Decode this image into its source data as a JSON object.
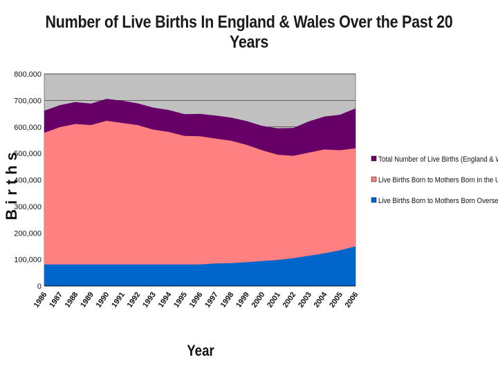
{
  "chart_data": {
    "type": "area",
    "title": "Number of Live Births In England & Wales Over the Past 20 Years",
    "xlabel": "Year",
    "ylabel": "Births",
    "ylim": [
      0,
      800000
    ],
    "yticks": [
      "0",
      "100,000",
      "200,000",
      "300,000",
      "400,000",
      "500,000",
      "600,000",
      "700,000",
      "800,000"
    ],
    "categories": [
      "1986",
      "1987",
      "1988",
      "1989",
      "1990",
      "1991",
      "1992",
      "1993",
      "1994",
      "1995",
      "1996",
      "1997",
      "1998",
      "1999",
      "2000",
      "2001",
      "2002",
      "2003",
      "2004",
      "2005",
      "2006"
    ],
    "stacked": false,
    "grid": true,
    "legend_position": "right",
    "series": [
      {
        "name": "Total Number of Live Births (England & Wales)",
        "color": "#660066",
        "values": [
          661000,
          682000,
          694000,
          688000,
          706000,
          699000,
          689000,
          673000,
          664000,
          648000,
          649000,
          643000,
          635000,
          622000,
          604000,
          595000,
          596000,
          621000,
          639000,
          646000,
          670000
        ]
      },
      {
        "name": "Live Births Born to Mothers Born in the UK\"",
        "color": "#ff8080",
        "values": [
          578000,
          599000,
          611000,
          607000,
          623000,
          615000,
          607000,
          590000,
          581000,
          566000,
          565000,
          556000,
          548000,
          532000,
          512000,
          495000,
          491000,
          503000,
          515000,
          512000,
          519000
        ]
      },
      {
        "name": "Live Births Born to Mothers Born Overseas",
        "color": "#0066cc",
        "values": [
          81000,
          81000,
          81000,
          81000,
          81000,
          81000,
          81000,
          81000,
          81000,
          81000,
          81000,
          85000,
          86000,
          90000,
          94000,
          98000,
          105000,
          114000,
          123000,
          135000,
          149000
        ]
      }
    ]
  }
}
